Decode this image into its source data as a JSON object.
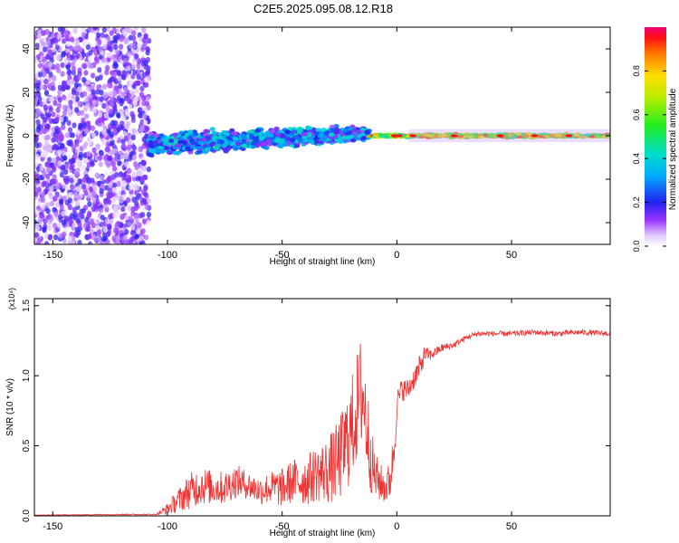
{
  "title": "C2E5.2025.095.08.12.R18",
  "chart_data": [
    {
      "type": "heatmap",
      "xlabel": "Height of straight line (km)",
      "ylabel": "Frequency (Hz)",
      "xlim": [
        -158,
        93
      ],
      "ylim": [
        -50,
        50
      ],
      "x_ticks": [
        -150,
        -100,
        -50,
        0,
        50
      ],
      "y_ticks": [
        -40,
        -20,
        0,
        20,
        40
      ],
      "colorbar": {
        "label": "Normalized spectral amplitude",
        "range": [
          0,
          1
        ],
        "ticks": [
          0.0,
          0.2,
          0.4,
          0.6,
          0.8
        ]
      },
      "regions": [
        {
          "x_range": [
            -158,
            -108
          ],
          "freq_range": [
            -50,
            50
          ],
          "amplitude": [
            0.02,
            0.2
          ]
        },
        {
          "x_range": [
            -108,
            -12
          ],
          "freq_range": [
            -15,
            10
          ],
          "amplitude": [
            0.1,
            0.45
          ]
        },
        {
          "x_range": [
            -12,
            93
          ],
          "freq_range": [
            -2,
            2
          ],
          "amplitude": [
            0.4,
            0.95
          ]
        }
      ]
    },
    {
      "type": "line",
      "xlabel": "Height of straight line (km)",
      "ylabel": "SNR (10 * v/v)",
      "y_multiplier": "(x10⁴)",
      "xlim": [
        -158,
        93
      ],
      "ylim": [
        0,
        1.55
      ],
      "x_ticks": [
        -150,
        -100,
        -50,
        0,
        50
      ],
      "y_ticks": [
        0.0,
        0.5,
        1.0,
        1.5
      ],
      "series": [
        {
          "color": "#ee3333",
          "x": [
            -158,
            -120,
            -105,
            -100,
            -96,
            -90,
            -85,
            -80,
            -75,
            -70,
            -65,
            -60,
            -55,
            -50,
            -45,
            -40,
            -35,
            -30,
            -25,
            -20,
            -17,
            -15,
            -12,
            -10,
            -8,
            -5,
            -3,
            -1,
            0,
            2,
            5,
            8,
            10,
            12,
            15,
            20,
            25,
            30,
            35,
            40,
            50,
            60,
            70,
            80,
            93
          ],
          "y": [
            0.005,
            0.01,
            0.01,
            0.05,
            0.1,
            0.18,
            0.22,
            0.2,
            0.2,
            0.25,
            0.22,
            0.18,
            0.2,
            0.2,
            0.25,
            0.25,
            0.3,
            0.32,
            0.4,
            0.6,
            0.8,
            0.9,
            0.5,
            0.3,
            0.25,
            0.2,
            0.25,
            0.5,
            0.8,
            0.9,
            0.9,
            1.0,
            1.05,
            1.15,
            1.15,
            1.2,
            1.22,
            1.27,
            1.3,
            1.3,
            1.3,
            1.31,
            1.3,
            1.31,
            1.3
          ],
          "noise": [
            0.002,
            0.004,
            0.004,
            0.04,
            0.08,
            0.13,
            0.14,
            0.12,
            0.12,
            0.12,
            0.1,
            0.1,
            0.12,
            0.14,
            0.16,
            0.18,
            0.2,
            0.24,
            0.3,
            0.38,
            0.4,
            0.45,
            0.3,
            0.2,
            0.15,
            0.12,
            0.15,
            0.15,
            0.1,
            0.08,
            0.08,
            0.08,
            0.1,
            0.06,
            0.04,
            0.03,
            0.025,
            0.02,
            0.02,
            0.02,
            0.02,
            0.02,
            0.02,
            0.02,
            0.02
          ]
        }
      ]
    }
  ]
}
